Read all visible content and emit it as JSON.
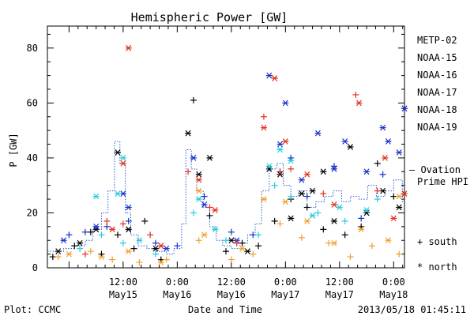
{
  "chart_data": {
    "type": "scatter",
    "title": "Hemispheric Power [GW]",
    "xlabel": "Date and Time",
    "ylabel": "P [GW]",
    "xlim": [
      -0.2,
      3.1
    ],
    "ylim": [
      0,
      88
    ],
    "yticks": [
      0,
      20,
      40,
      60,
      80
    ],
    "xticks": [
      {
        "x": 0.5,
        "time": "12:00",
        "date": "May15"
      },
      {
        "x": 1.0,
        "time": "0:00",
        "date": "May16"
      },
      {
        "x": 1.5,
        "time": "12:00",
        "date": "May16"
      },
      {
        "x": 2.0,
        "time": "0:00",
        "date": "May17"
      },
      {
        "x": 2.5,
        "time": "12:00",
        "date": "May17"
      },
      {
        "x": 3.0,
        "time": "0:00",
        "date": "May18"
      }
    ],
    "legend": {
      "placement": "right",
      "entries": [
        {
          "name": "METP-02",
          "color": "#000000"
        },
        {
          "name": "NOAA-15",
          "color": "#1530c8"
        },
        {
          "name": "NOAA-16",
          "color": "#28c8e0"
        },
        {
          "name": "NOAA-17",
          "color": "#38e080"
        },
        {
          "name": "NOAA-18",
          "color": "#f0a030"
        },
        {
          "name": "NOAA-19",
          "color": "#e03020"
        }
      ],
      "ovation_label_line1": "— Ovation",
      "ovation_label_line2": "Prime HPI",
      "ovation_color": "#1f5fd0",
      "marker_south": "+ south",
      "marker_north": "* north"
    },
    "footer_left": "Plot: CCMC",
    "footer_right": "2013/05/18 01:45:11",
    "series": [
      {
        "name": "Ovation Prime HPI",
        "type": "step",
        "color": "#1f5fd0",
        "points": [
          [
            -0.2,
            6
          ],
          [
            -0.05,
            7
          ],
          [
            0.05,
            8
          ],
          [
            0.15,
            10
          ],
          [
            0.22,
            14
          ],
          [
            0.3,
            20
          ],
          [
            0.36,
            28
          ],
          [
            0.42,
            46
          ],
          [
            0.47,
            38
          ],
          [
            0.52,
            20
          ],
          [
            0.57,
            12
          ],
          [
            0.64,
            8
          ],
          [
            0.72,
            7
          ],
          [
            0.8,
            6
          ],
          [
            0.9,
            5
          ],
          [
            0.97,
            7
          ],
          [
            1.04,
            16
          ],
          [
            1.08,
            43
          ],
          [
            1.13,
            36
          ],
          [
            1.18,
            28
          ],
          [
            1.24,
            22
          ],
          [
            1.3,
            15
          ],
          [
            1.36,
            10
          ],
          [
            1.42,
            8
          ],
          [
            1.5,
            7
          ],
          [
            1.58,
            9
          ],
          [
            1.65,
            12
          ],
          [
            1.72,
            16
          ],
          [
            1.78,
            28
          ],
          [
            1.85,
            36
          ],
          [
            1.92,
            38
          ],
          [
            1.98,
            30
          ],
          [
            2.05,
            26
          ],
          [
            2.12,
            28
          ],
          [
            2.2,
            22
          ],
          [
            2.28,
            24
          ],
          [
            2.36,
            26
          ],
          [
            2.44,
            28
          ],
          [
            2.52,
            24
          ],
          [
            2.6,
            26
          ],
          [
            2.68,
            25
          ],
          [
            2.76,
            30
          ],
          [
            2.84,
            26
          ],
          [
            2.92,
            28
          ],
          [
            3.0,
            32
          ],
          [
            3.08,
            24
          ]
        ]
      },
      {
        "name": "METP-02",
        "color": "#000000",
        "south": [
          [
            -0.15,
            4
          ],
          [
            0.05,
            8
          ],
          [
            0.2,
            13
          ],
          [
            0.3,
            5
          ],
          [
            0.45,
            12
          ],
          [
            0.6,
            7
          ],
          [
            0.7,
            17
          ],
          [
            0.85,
            3
          ],
          [
            1.15,
            61
          ],
          [
            1.3,
            19
          ],
          [
            1.45,
            6
          ],
          [
            1.6,
            9
          ],
          [
            1.75,
            8
          ],
          [
            1.9,
            17
          ],
          [
            2.05,
            25
          ],
          [
            2.2,
            22
          ],
          [
            2.35,
            14
          ],
          [
            2.55,
            12
          ],
          [
            2.7,
            15
          ],
          [
            2.85,
            38
          ],
          [
            3.0,
            26
          ]
        ],
        "north": [
          [
            -0.1,
            6
          ],
          [
            0.1,
            9
          ],
          [
            0.25,
            14
          ],
          [
            0.45,
            42
          ],
          [
            0.55,
            14
          ],
          [
            0.8,
            7
          ],
          [
            1.1,
            49
          ],
          [
            1.2,
            34
          ],
          [
            1.3,
            40
          ],
          [
            1.5,
            10
          ],
          [
            1.65,
            6
          ],
          [
            1.85,
            36
          ],
          [
            1.95,
            34
          ],
          [
            2.05,
            18
          ],
          [
            2.15,
            27
          ],
          [
            2.25,
            28
          ],
          [
            2.35,
            35
          ],
          [
            2.45,
            17
          ],
          [
            2.6,
            44
          ],
          [
            2.75,
            20
          ],
          [
            2.9,
            28
          ],
          [
            3.05,
            22
          ]
        ]
      },
      {
        "name": "NOAA-15",
        "color": "#1530c8",
        "south": [
          [
            0.0,
            12
          ],
          [
            0.15,
            13
          ],
          [
            0.35,
            15
          ],
          [
            0.55,
            17
          ],
          [
            0.8,
            9
          ],
          [
            1.0,
            8
          ],
          [
            1.25,
            26
          ],
          [
            1.5,
            13
          ],
          [
            1.7,
            12
          ],
          [
            1.95,
            35
          ],
          [
            2.05,
            40
          ],
          [
            2.2,
            26
          ],
          [
            2.45,
            37
          ],
          [
            2.7,
            18
          ],
          [
            2.9,
            34
          ]
        ],
        "north": [
          [
            -0.05,
            10
          ],
          [
            0.25,
            15
          ],
          [
            0.5,
            27
          ],
          [
            0.55,
            22
          ],
          [
            0.9,
            7
          ],
          [
            1.15,
            40
          ],
          [
            1.25,
            23
          ],
          [
            1.55,
            10
          ],
          [
            1.85,
            70
          ],
          [
            1.95,
            45
          ],
          [
            2.0,
            60
          ],
          [
            2.15,
            32
          ],
          [
            2.3,
            49
          ],
          [
            2.45,
            36
          ],
          [
            2.55,
            46
          ],
          [
            2.75,
            35
          ],
          [
            2.9,
            51
          ],
          [
            2.95,
            46
          ],
          [
            3.05,
            42
          ],
          [
            3.1,
            58
          ]
        ]
      },
      {
        "name": "NOAA-16",
        "color": "#28c8e0",
        "south": [
          [
            0.1,
            7
          ],
          [
            0.3,
            12
          ],
          [
            0.5,
            9
          ],
          [
            0.8,
            5
          ],
          [
            1.15,
            20
          ],
          [
            1.45,
            10
          ],
          [
            1.75,
            12
          ],
          [
            1.9,
            30
          ],
          [
            2.05,
            26
          ],
          [
            2.3,
            20
          ],
          [
            2.55,
            17
          ],
          [
            2.85,
            25
          ]
        ],
        "north": [
          [
            0.25,
            26
          ],
          [
            0.45,
            27
          ],
          [
            0.5,
            40
          ],
          [
            0.65,
            10
          ],
          [
            1.2,
            25
          ],
          [
            1.35,
            14
          ],
          [
            1.85,
            37
          ],
          [
            1.95,
            43
          ],
          [
            2.05,
            39
          ],
          [
            2.25,
            19
          ],
          [
            2.5,
            22
          ],
          [
            2.75,
            21
          ]
        ]
      },
      {
        "name": "NOAA-18",
        "color": "#f0a030",
        "south": [
          [
            -0.1,
            4
          ],
          [
            0.2,
            6
          ],
          [
            0.4,
            3
          ],
          [
            0.65,
            2
          ],
          [
            0.9,
            3
          ],
          [
            1.2,
            10
          ],
          [
            1.5,
            3
          ],
          [
            1.7,
            5
          ],
          [
            1.95,
            16
          ],
          [
            2.15,
            11
          ],
          [
            2.4,
            9
          ],
          [
            2.6,
            4
          ],
          [
            2.8,
            8
          ],
          [
            3.05,
            5
          ]
        ],
        "north": [
          [
            0.0,
            5
          ],
          [
            0.3,
            4
          ],
          [
            0.55,
            6
          ],
          [
            0.85,
            2
          ],
          [
            1.2,
            28
          ],
          [
            1.25,
            12
          ],
          [
            1.6,
            7
          ],
          [
            1.8,
            25
          ],
          [
            2.0,
            24
          ],
          [
            2.2,
            17
          ],
          [
            2.45,
            9
          ],
          [
            2.7,
            14
          ],
          [
            2.95,
            10
          ],
          [
            3.05,
            26
          ]
        ]
      },
      {
        "name": "NOAA-19",
        "color": "#e03020",
        "south": [
          [
            0.15,
            5
          ],
          [
            0.35,
            17
          ],
          [
            0.5,
            16
          ],
          [
            0.75,
            12
          ],
          [
            1.1,
            35
          ],
          [
            1.3,
            22
          ],
          [
            1.55,
            9
          ],
          [
            1.8,
            55
          ],
          [
            1.95,
            35
          ],
          [
            2.05,
            36
          ],
          [
            2.35,
            27
          ],
          [
            2.65,
            63
          ],
          [
            2.85,
            28
          ],
          [
            3.15,
            26
          ]
        ],
        "north": [
          [
            0.4,
            14
          ],
          [
            0.5,
            38
          ],
          [
            0.55,
            80
          ],
          [
            0.85,
            8
          ],
          [
            1.2,
            32
          ],
          [
            1.35,
            21
          ],
          [
            1.8,
            51
          ],
          [
            1.9,
            69
          ],
          [
            2.0,
            46
          ],
          [
            2.2,
            34
          ],
          [
            2.45,
            23
          ],
          [
            2.68,
            60
          ],
          [
            2.92,
            40
          ],
          [
            3.0,
            18
          ],
          [
            3.1,
            27
          ]
        ]
      }
    ]
  }
}
